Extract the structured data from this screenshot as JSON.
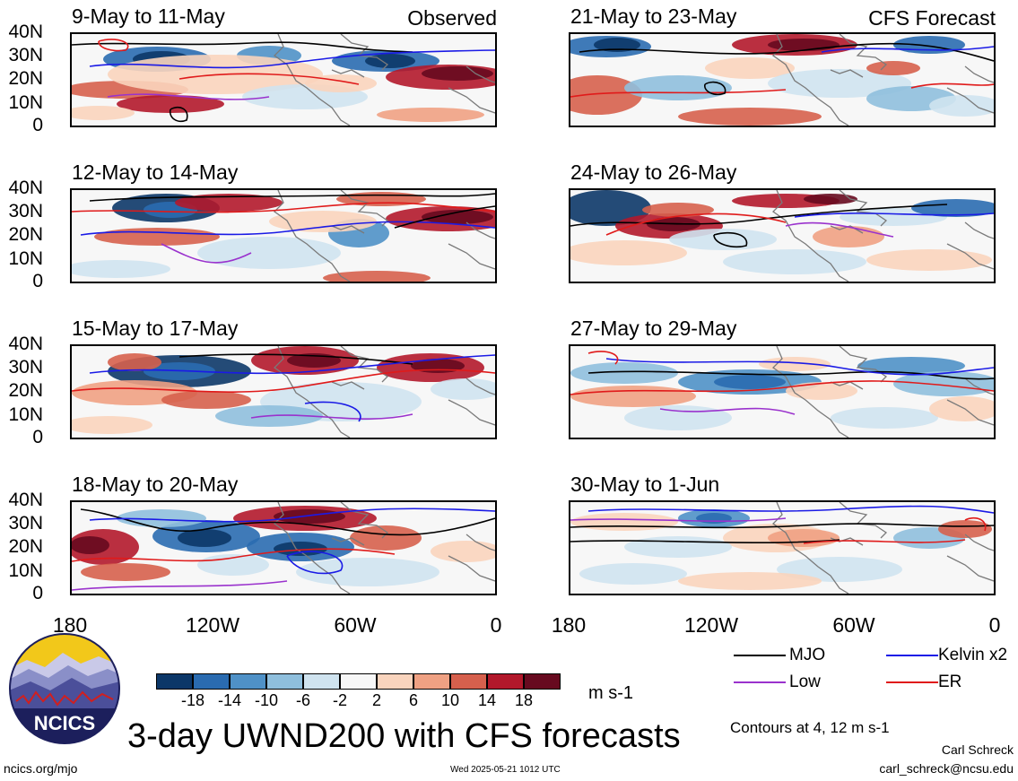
{
  "figure": {
    "title": "3-day UWND200 with CFS forecasts",
    "units": "m s-1",
    "contour_note": "Contours at 4, 12 m s-1",
    "author": "Carl Schreck",
    "email": "carl_schreck@ncsu.edu",
    "url": "ncics.org/mjo",
    "timestamp": "Wed 2025-05-21 1012 UTC",
    "logo_text": "NCICS",
    "observed_tag": "Observed",
    "forecast_tag": "CFS Forecast"
  },
  "axes": {
    "y_ticks": [
      "40N",
      "30N",
      "20N",
      "10N",
      "0"
    ],
    "x_ticks": [
      "180",
      "120W",
      "60W",
      "0"
    ]
  },
  "colorbar": {
    "labels": [
      "-18",
      "-14",
      "-10",
      "-6",
      "-2",
      "2",
      "6",
      "10",
      "14",
      "18"
    ],
    "colors": [
      "#0c3768",
      "#2a6bb0",
      "#4f91c7",
      "#8fbfdd",
      "#cfe3ef",
      "#f7f7f7",
      "#f9d4bd",
      "#efa183",
      "#d6604d",
      "#b2182b",
      "#670a1f"
    ]
  },
  "legend": [
    {
      "label": "MJO",
      "color": "#000000"
    },
    {
      "label": "Kelvin x2",
      "color": "#1a1ae6"
    },
    {
      "label": "Low",
      "color": "#9a32cd"
    },
    {
      "label": "ER",
      "color": "#e01a1a"
    }
  ],
  "chart_data": {
    "type": "heatmap",
    "variable": "UWND200",
    "xlim": [
      "180",
      "0"
    ],
    "ylim": [
      "0",
      "40N"
    ],
    "contour_levels": [
      4,
      12
    ],
    "panels": [
      {
        "title": "9-May to 11-May",
        "kind": "Observed"
      },
      {
        "title": "12-May to 14-May",
        "kind": "Observed"
      },
      {
        "title": "15-May to 17-May",
        "kind": "Observed"
      },
      {
        "title": "18-May to 20-May",
        "kind": "Observed"
      },
      {
        "title": "21-May to 23-May",
        "kind": "CFS Forecast"
      },
      {
        "title": "24-May to 26-May",
        "kind": "CFS Forecast"
      },
      {
        "title": "27-May to 29-May",
        "kind": "CFS Forecast"
      },
      {
        "title": "30-May to 1-Jun",
        "kind": "CFS Forecast"
      }
    ]
  }
}
